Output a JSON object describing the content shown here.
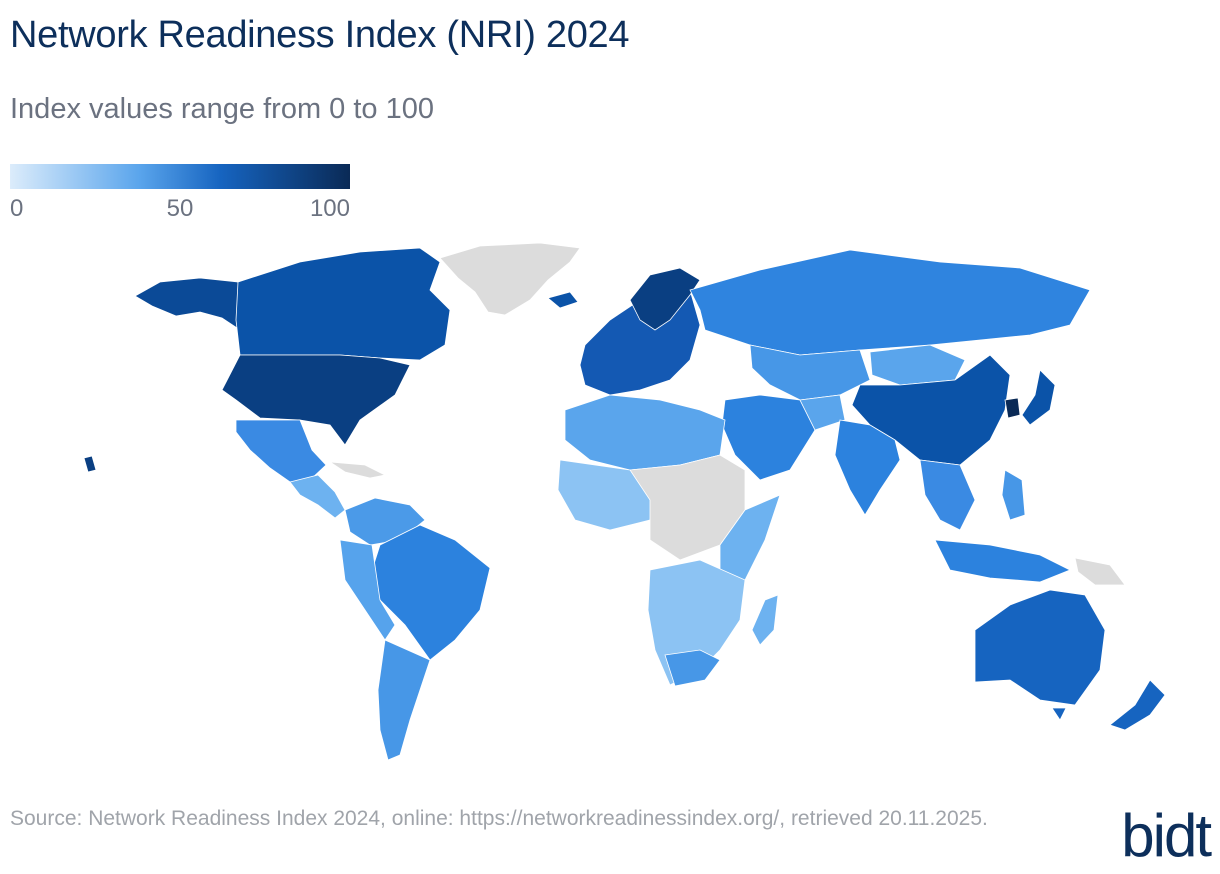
{
  "title": "Network Readiness Index (NRI) 2024",
  "subtitle": "Index values range from 0 to 100",
  "legend": {
    "ticks": [
      "0",
      "50",
      "100"
    ],
    "colors": {
      "low": "#dcecfb",
      "mid": "#5aa5ec",
      "high": "#1664c0",
      "max": "#0a2a56",
      "no_data": "#dcdcdc"
    }
  },
  "source": "Source: Network Readiness Index 2024, online: https://networkreadinessindex.org/, retrieved 20.11.2025.",
  "logo": "bidt"
}
